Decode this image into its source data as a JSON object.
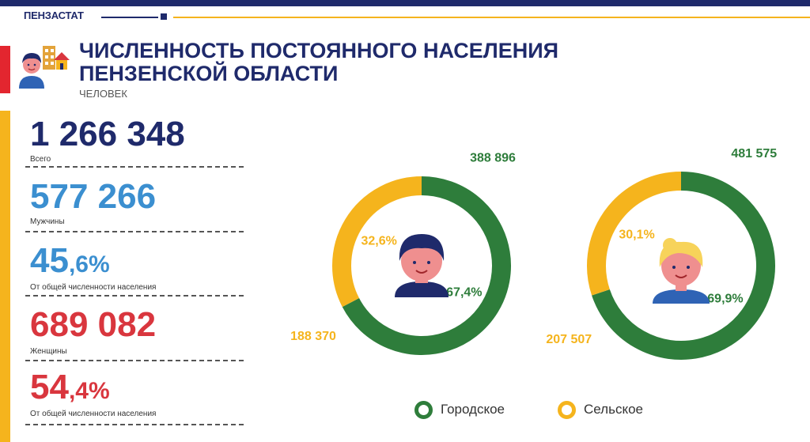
{
  "brand": "ПЕНЗАСТАТ",
  "title_line1": "ЧИСЛЕННОСТЬ ПОСТОЯННОГО НАСЕЛЕНИЯ",
  "title_line2": "ПЕНЗЕНСКОЙ ОБЛАСТИ",
  "unit": "ЧЕЛОВЕК",
  "colors": {
    "navy": "#1f2a6b",
    "gold": "#f5b41d",
    "red": "#e3262f",
    "blue": "#3b8fd0",
    "green": "#2e7d3b"
  },
  "stats": {
    "total_value": "1 266 348",
    "total_label": "Всего",
    "men_value": "577 266",
    "men_label": "Мужчины",
    "men_pct_int": "45",
    "men_pct_frac": ",6%",
    "men_pct_label": "От общей численности населения",
    "women_value": "689 082",
    "women_label": "Женщины",
    "women_pct_int": "54",
    "women_pct_frac": ",4%",
    "women_pct_label": "От общей численности населения"
  },
  "chart_data": [
    {
      "type": "pie",
      "figure": "male-avatar-icon",
      "categories": [
        "Городское",
        "Сельское"
      ],
      "values": [
        388896,
        188370
      ],
      "value_labels": [
        "388 896",
        "188 370"
      ],
      "percent_labels": [
        "67,4%",
        "32,6%"
      ],
      "colors": [
        "#2e7d3b",
        "#f5b41d"
      ]
    },
    {
      "type": "pie",
      "figure": "female-avatar-icon",
      "categories": [
        "Городское",
        "Сельское"
      ],
      "values": [
        481575,
        207507
      ],
      "value_labels": [
        "481 575",
        "207 507"
      ],
      "percent_labels": [
        "69,9%",
        "30,1%"
      ],
      "colors": [
        "#2e7d3b",
        "#f5b41d"
      ]
    }
  ],
  "legend": [
    {
      "label": "Городское",
      "color": "#2e7d3b"
    },
    {
      "label": "Сельское",
      "color": "#f5b41d"
    }
  ]
}
